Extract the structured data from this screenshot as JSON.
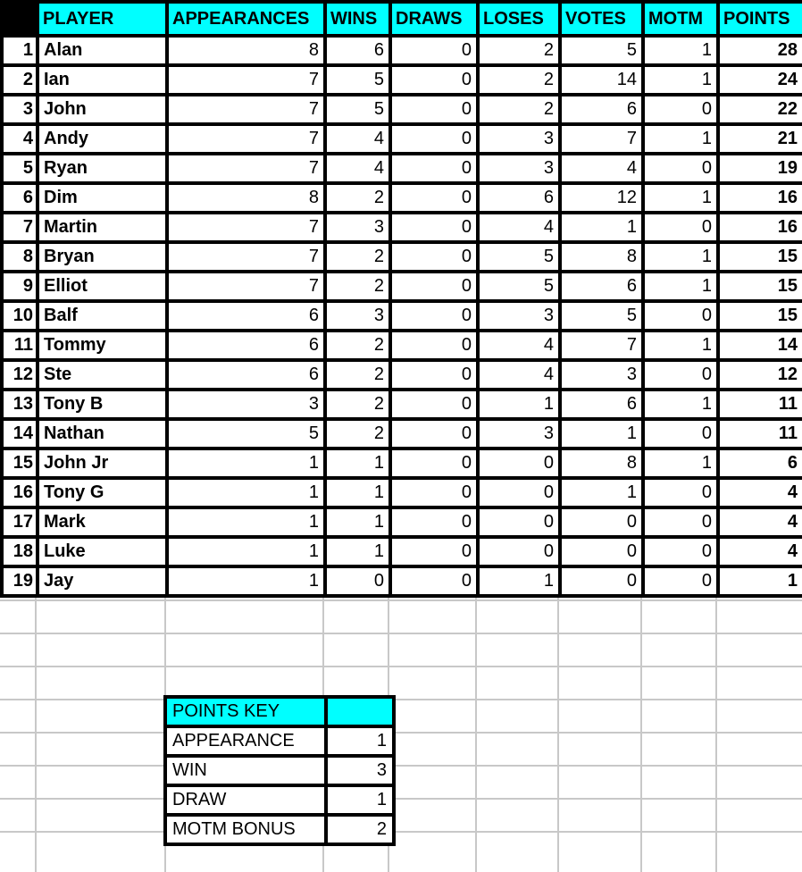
{
  "colors": {
    "header_fill": "#00ffff",
    "border": "#000000",
    "gridline": "#c8c8c8"
  },
  "headers": [
    "PLAYER",
    "APPEARANCES",
    "WINS",
    "DRAWS",
    "LOSES",
    "VOTES",
    "MOTM",
    "POINTS"
  ],
  "rows": [
    [
      "1",
      "Alan",
      "8",
      "6",
      "0",
      "2",
      "5",
      "1",
      "28"
    ],
    [
      "2",
      "Ian",
      "7",
      "5",
      "0",
      "2",
      "14",
      "1",
      "24"
    ],
    [
      "3",
      "John",
      "7",
      "5",
      "0",
      "2",
      "6",
      "0",
      "22"
    ],
    [
      "4",
      "Andy",
      "7",
      "4",
      "0",
      "3",
      "7",
      "1",
      "21"
    ],
    [
      "5",
      "Ryan",
      "7",
      "4",
      "0",
      "3",
      "4",
      "0",
      "19"
    ],
    [
      "6",
      "Dim",
      "8",
      "2",
      "0",
      "6",
      "12",
      "1",
      "16"
    ],
    [
      "7",
      "Martin",
      "7",
      "3",
      "0",
      "4",
      "1",
      "0",
      "16"
    ],
    [
      "8",
      "Bryan",
      "7",
      "2",
      "0",
      "5",
      "8",
      "1",
      "15"
    ],
    [
      "9",
      "Elliot",
      "7",
      "2",
      "0",
      "5",
      "6",
      "1",
      "15"
    ],
    [
      "10",
      "Balf",
      "6",
      "3",
      "0",
      "3",
      "5",
      "0",
      "15"
    ],
    [
      "11",
      "Tommy",
      "6",
      "2",
      "0",
      "4",
      "7",
      "1",
      "14"
    ],
    [
      "12",
      "Ste",
      "6",
      "2",
      "0",
      "4",
      "3",
      "0",
      "12"
    ],
    [
      "13",
      "Tony B",
      "3",
      "2",
      "0",
      "1",
      "6",
      "1",
      "11"
    ],
    [
      "14",
      "Nathan",
      "5",
      "2",
      "0",
      "3",
      "1",
      "0",
      "11"
    ],
    [
      "15",
      "John Jr",
      "1",
      "1",
      "0",
      "0",
      "8",
      "1",
      "6"
    ],
    [
      "16",
      "Tony G",
      "1",
      "1",
      "0",
      "0",
      "1",
      "0",
      "4"
    ],
    [
      "17",
      "Mark",
      "1",
      "1",
      "0",
      "0",
      "0",
      "0",
      "4"
    ],
    [
      "18",
      "Luke",
      "1",
      "1",
      "0",
      "0",
      "0",
      "0",
      "4"
    ],
    [
      "19",
      "Jay",
      "1",
      "0",
      "0",
      "1",
      "0",
      "0",
      "1"
    ]
  ],
  "points_key": {
    "title": "POINTS KEY",
    "items": [
      {
        "label": "APPEARANCE",
        "value": "1"
      },
      {
        "label": "WIN",
        "value": "3"
      },
      {
        "label": "DRAW",
        "value": "1"
      },
      {
        "label": "MOTM BONUS",
        "value": "2"
      }
    ]
  }
}
